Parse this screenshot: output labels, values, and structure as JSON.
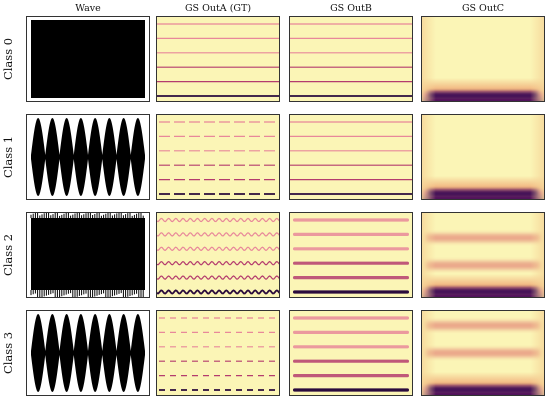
{
  "columns": [
    "Wave",
    "GS OutA (GT)",
    "GS OutB",
    "GS OutC"
  ],
  "rows": [
    {
      "label": "Class 0",
      "wave": "dense",
      "a_style": "solid",
      "c_bands": []
    },
    {
      "label": "Class 1",
      "wave": "am",
      "a_style": "dashed",
      "c_bands": []
    },
    {
      "label": "Class 2",
      "wave": "dense",
      "a_style": "wavy",
      "c_bands": [
        0.3,
        0.62
      ]
    },
    {
      "label": "Class 3",
      "wave": "am",
      "a_style": "dotted",
      "c_bands": [
        0.18,
        0.5
      ]
    }
  ],
  "colors": {
    "background": "#fbf5b6",
    "line_light": "#e8889a",
    "line_mid": "#b43c6e",
    "line_dark": "#2a0b3c",
    "band": "#f1b37e",
    "bottom_band": "#3a0d55",
    "wave": "#000000"
  }
}
